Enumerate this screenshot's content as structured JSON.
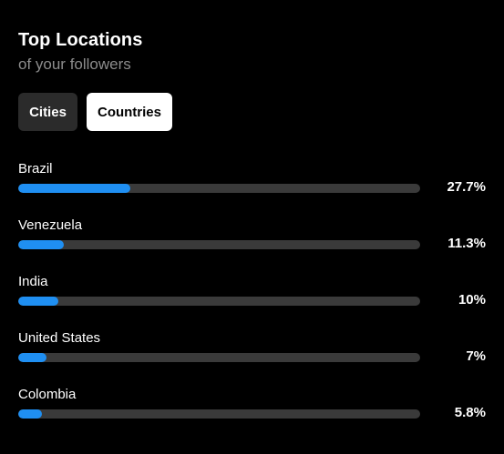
{
  "header": {
    "title": "Top Locations",
    "subtitle": "of your followers"
  },
  "tabs": [
    {
      "label": "Cities",
      "active": false
    },
    {
      "label": "Countries",
      "active": true
    }
  ],
  "locations": [
    {
      "name": "Brazil",
      "value_label": "27.7%",
      "fraction": 0.28
    },
    {
      "name": "Venezuela",
      "value_label": "11.3%",
      "fraction": 0.113
    },
    {
      "name": "India",
      "value_label": "10%",
      "fraction": 0.1
    },
    {
      "name": "United States",
      "value_label": "7%",
      "fraction": 0.07
    },
    {
      "name": "Colombia",
      "value_label": "5.8%",
      "fraction": 0.058
    }
  ],
  "colors": {
    "background": "#000000",
    "bar_fill": "#1f8ff2",
    "bar_track": "#3a3a3a",
    "tab_inactive": "#2b2b2b",
    "tab_active": "#ffffff",
    "subtitle": "#8c8c8c"
  }
}
